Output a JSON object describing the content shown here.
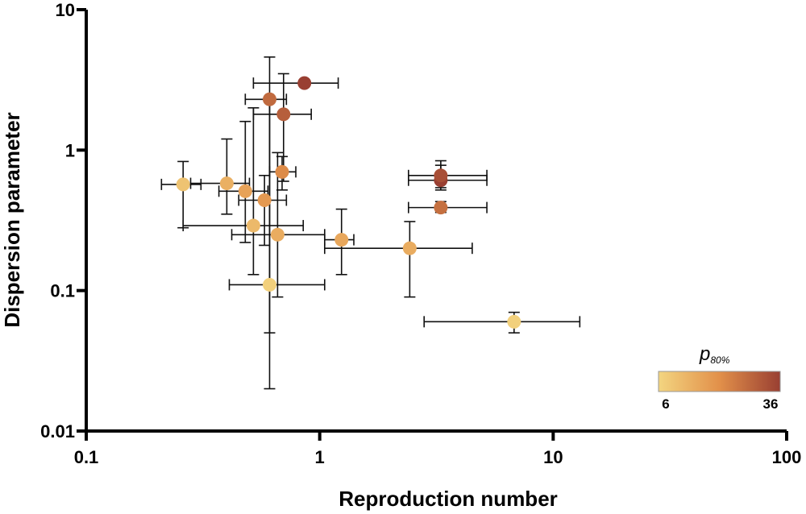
{
  "chart_data": {
    "type": "scatter",
    "xlabel": "Reproduction number",
    "ylabel": "Dispersion parameter",
    "x_scale": "log",
    "y_scale": "log",
    "xlim": [
      0.1,
      100
    ],
    "ylim": [
      0.01,
      10
    ],
    "x_ticks": [
      "0.1",
      "1",
      "10",
      "100"
    ],
    "y_ticks": [
      "0.01",
      "0.1",
      "1",
      "10"
    ],
    "grid": false,
    "legend": "none",
    "colorbar": {
      "title": "p",
      "title_subscript": "80%",
      "min_label": "6",
      "max_label": "36",
      "min": 6,
      "max": 36,
      "color_low": "#f3d580",
      "color_mid": "#e2904a",
      "color_high": "#993f32",
      "placement": "bottom-right"
    },
    "points": [
      {
        "x": 0.26,
        "y": 0.57,
        "x_err": [
          0.21,
          0.31
        ],
        "y_err": [
          0.28,
          0.83
        ],
        "p80": 10
      },
      {
        "x": 0.4,
        "y": 0.58,
        "x_err": [
          0.28,
          0.5
        ],
        "y_err": [
          0.35,
          1.2
        ],
        "p80": 14
      },
      {
        "x": 0.48,
        "y": 0.51,
        "x_err": [
          0.37,
          0.6
        ],
        "y_err": [
          0.22,
          1.6
        ],
        "p80": 17
      },
      {
        "x": 0.52,
        "y": 0.29,
        "x_err": [
          0.26,
          0.85
        ],
        "y_err": [
          0.13,
          2.0
        ],
        "p80": 12
      },
      {
        "x": 0.58,
        "y": 0.44,
        "x_err": [
          0.45,
          0.72
        ],
        "y_err": [
          0.21,
          0.66
        ],
        "p80": 19
      },
      {
        "x": 0.61,
        "y": 0.11,
        "x_err": [
          0.41,
          1.05
        ],
        "y_err": [
          0.02,
          2.2
        ],
        "p80": 7
      },
      {
        "x": 0.61,
        "y": 2.3,
        "x_err": [
          0.48,
          0.72
        ],
        "y_err": [
          0.05,
          4.6
        ],
        "p80": 28
      },
      {
        "x": 0.66,
        "y": 0.25,
        "x_err": [
          0.42,
          1.05
        ],
        "y_err": [
          0.09,
          0.96
        ],
        "p80": 15
      },
      {
        "x": 0.69,
        "y": 0.7,
        "x_err": [
          0.61,
          0.79
        ],
        "y_err": [
          0.52,
          0.9
        ],
        "p80": 22
      },
      {
        "x": 0.7,
        "y": 1.8,
        "x_err": [
          0.52,
          0.92
        ],
        "y_err": [
          0.6,
          3.5
        ],
        "p80": 30
      },
      {
        "x": 0.86,
        "y": 3.0,
        "x_err": [
          0.52,
          1.2
        ],
        "y_err": [
          3.0,
          3.0
        ],
        "p80": 36
      },
      {
        "x": 1.24,
        "y": 0.23,
        "x_err": [
          1.05,
          1.4
        ],
        "y_err": [
          0.13,
          0.38
        ],
        "p80": 16
      },
      {
        "x": 2.43,
        "y": 0.2,
        "x_err": [
          1.05,
          4.5
        ],
        "y_err": [
          0.09,
          0.31
        ],
        "p80": 15
      },
      {
        "x": 3.3,
        "y": 0.61,
        "x_err": [
          2.4,
          5.2
        ],
        "y_err": [
          0.52,
          0.78
        ],
        "p80": 36
      },
      {
        "x": 3.3,
        "y": 0.66,
        "x_err": [
          2.4,
          5.2
        ],
        "y_err": [
          0.54,
          0.84
        ],
        "p80": 33
      },
      {
        "x": 3.3,
        "y": 0.39,
        "x_err": [
          2.4,
          5.2
        ],
        "y_err": [
          0.36,
          0.43
        ],
        "p80": 27
      },
      {
        "x": 6.8,
        "y": 0.06,
        "x_err": [
          2.8,
          13.0
        ],
        "y_err": [
          0.05,
          0.07
        ],
        "p80": 7
      }
    ]
  }
}
